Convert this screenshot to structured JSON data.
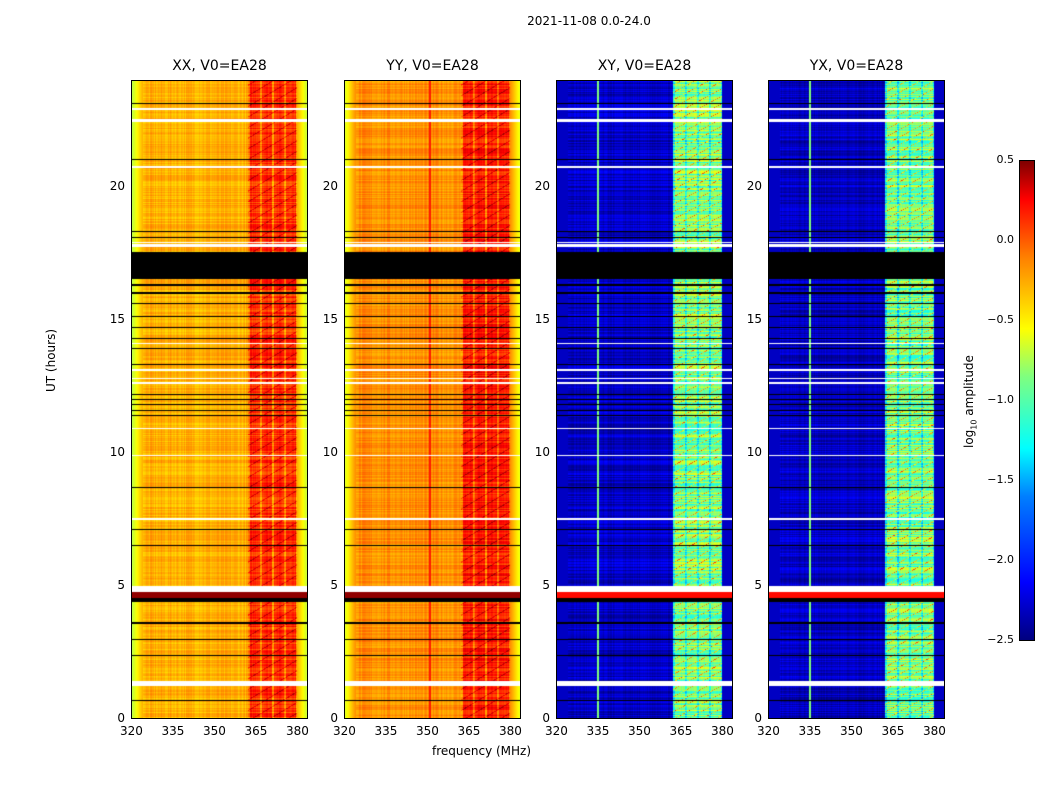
{
  "chart_data": {
    "type": "heatmap",
    "title": "2021-11-08 0.0-24.0",
    "xlabel": "frequency (MHz)",
    "ylabel": "UT (hours)",
    "xlim": [
      320,
      384
    ],
    "ylim": [
      0,
      24
    ],
    "xticks": [
      "320",
      "335",
      "350",
      "365",
      "380"
    ],
    "yticks": [
      "0",
      "5",
      "10",
      "15",
      "20"
    ],
    "colorbar": {
      "label": "log10 amplitude",
      "label_main": "log",
      "label_sub": "10",
      "label_rest": " amplitude",
      "range": [
        -2.5,
        0.5
      ],
      "ticks": [
        "0.5",
        "0.0",
        "−0.5",
        "−1.0",
        "−1.5",
        "−2.0",
        "−2.5"
      ],
      "colormap": "jet"
    },
    "panels": [
      {
        "title": "XX, V0=EA28",
        "base": -0.4,
        "band": [
          362,
          380
        ],
        "band_level": 0.0,
        "edge_level": -0.85
      },
      {
        "title": "YY, V0=EA28",
        "base": -0.3,
        "band": [
          362,
          380
        ],
        "band_level": 0.05,
        "edge_level": -0.75,
        "vline": 351
      },
      {
        "title": "XY, V0=EA28",
        "base": -2.3,
        "band": [
          362,
          380
        ],
        "band_level": -1.0,
        "edge_level": -2.3,
        "vline": 335
      },
      {
        "title": "YX, V0=EA28",
        "base": -2.3,
        "band": [
          362,
          380
        ],
        "band_level": -1.0,
        "edge_level": -2.3,
        "vline": 335
      }
    ],
    "flagged_white_hours": [
      [
        1.24,
        1.46
      ],
      [
        4.8,
        5.0
      ],
      [
        17.75,
        17.85
      ],
      [
        17.9,
        17.95
      ],
      [
        10.9,
        10.96
      ],
      [
        12.6,
        12.66
      ],
      [
        12.78,
        12.84
      ],
      [
        13.1,
        13.16
      ],
      [
        20.7,
        20.78
      ],
      [
        22.45,
        22.55
      ],
      [
        22.9,
        22.95
      ],
      [
        9.9,
        9.95
      ],
      [
        7.5,
        7.55
      ],
      [
        14.1,
        14.15
      ]
    ],
    "flagged_black_hours": [
      [
        16.55,
        17.55
      ],
      [
        4.4,
        4.58
      ],
      [
        3.6,
        3.68
      ],
      [
        0.7,
        0.74
      ],
      [
        2.4,
        2.44
      ],
      [
        3.0,
        3.04
      ],
      [
        6.5,
        6.54
      ],
      [
        7.1,
        7.14
      ],
      [
        8.7,
        8.74
      ],
      [
        11.4,
        11.44
      ],
      [
        11.6,
        11.64
      ],
      [
        11.8,
        11.84
      ],
      [
        12.0,
        12.04
      ],
      [
        12.2,
        12.24
      ],
      [
        13.3,
        13.34
      ],
      [
        13.9,
        13.94
      ],
      [
        14.3,
        14.34
      ],
      [
        14.7,
        14.74
      ],
      [
        15.1,
        15.14
      ],
      [
        15.6,
        15.64
      ],
      [
        16.0,
        16.04
      ],
      [
        16.3,
        16.34
      ],
      [
        18.1,
        18.14
      ],
      [
        18.3,
        18.34
      ],
      [
        21.0,
        21.04
      ],
      [
        23.1,
        23.14
      ]
    ],
    "high_band_hours": [
      4.58,
      4.8
    ]
  }
}
